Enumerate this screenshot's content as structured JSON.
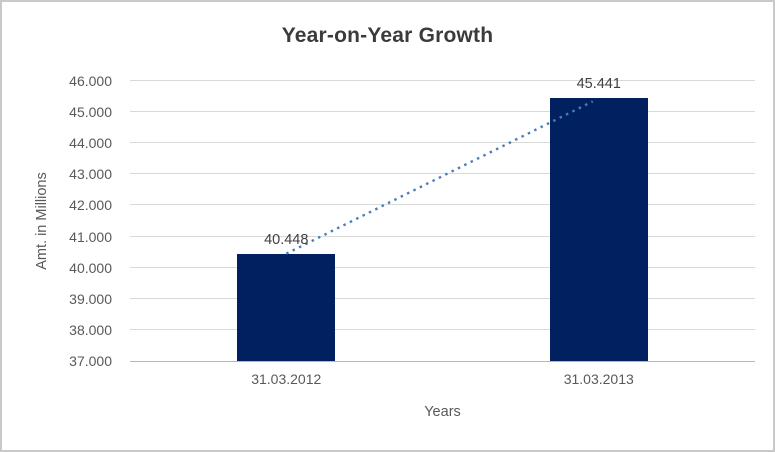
{
  "chart_data": {
    "type": "bar",
    "title": "Year-on-Year Growth",
    "xlabel": "Years",
    "ylabel": "Amt. in Millions",
    "categories": [
      "31.03.2012",
      "31.03.2013"
    ],
    "values": [
      40448,
      45441
    ],
    "data_labels": [
      "40.448",
      "45.441"
    ],
    "ylim": [
      37000,
      46000
    ],
    "ytick_step": 1000,
    "ytick_labels": [
      "37.000",
      "38.000",
      "39.000",
      "40.000",
      "41.000",
      "42.000",
      "43.000",
      "44.000",
      "45.000",
      "46.000"
    ],
    "grid": true,
    "legend": false,
    "trendline": {
      "style": "dotted",
      "connects": [
        "31.03.2012",
        "31.03.2013"
      ]
    },
    "colors": {
      "bar": "#002060",
      "trendline": "#4a7ebb",
      "gridline": "#d9d9d9",
      "axis_line": "#b7b7b7",
      "tick_text": "#595959",
      "title_text": "#3b3b3b",
      "data_label_text": "#404040",
      "background": "#ffffff",
      "border": "#c9c9c9"
    }
  }
}
